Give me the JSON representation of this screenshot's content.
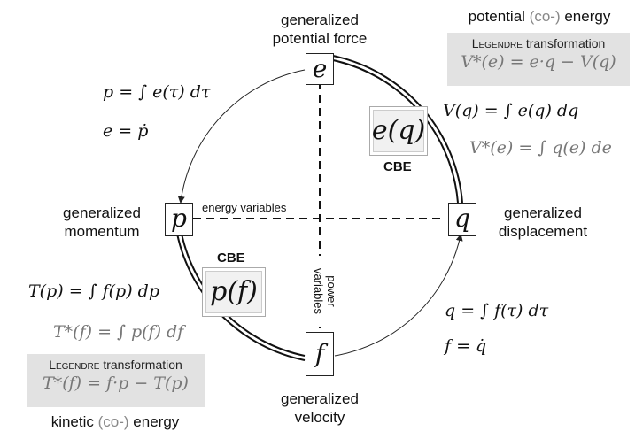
{
  "nodes": {
    "e": "e",
    "p": "p",
    "q": "q",
    "f": "f"
  },
  "node_labels": {
    "e_line1": "generalized",
    "e_line2": "potential force",
    "p_line1": "generalized",
    "p_line2": "momentum",
    "q_line1": "generalized",
    "q_line2": "displacement",
    "f_line1": "generalized",
    "f_line2": "velocity"
  },
  "potential_panel": {
    "heading_prefix": "potential ",
    "heading_co": "(co-)",
    "heading_suffix": " energy",
    "title_smallcaps": "Legendre",
    "title_rest": " transformation",
    "equation": "V*(e) = e·q − V(q)"
  },
  "kinetic_panel": {
    "heading_prefix": "kinetic ",
    "heading_co": "(co-)",
    "heading_suffix": " energy",
    "title_smallcaps": "Legendre",
    "title_rest": " transformation",
    "equation": "T*(f) = f·p − T(p)"
  },
  "constitutive": {
    "e_of_q": "e(q)",
    "p_of_f": "p(f)",
    "cbe_top": "CBE",
    "cbe_bottom": "CBE"
  },
  "equations": {
    "p_integral": "p = ∫ e(τ) dτ",
    "e_dot": "e = ṗ",
    "V_q": "V(q) = ∫ e(q) dq",
    "V_star": "V*(e) = ∫ q(e) de",
    "T_p": "T(p) = ∫ f(p) dp",
    "T_star": "T*(f) = ∫ p(f) df",
    "q_integral": "q = ∫ f(τ) dτ",
    "f_dot": "f = q̇"
  },
  "axis_labels": {
    "energy": "energy variables",
    "power_line1": "power",
    "power_line2": "variables"
  }
}
